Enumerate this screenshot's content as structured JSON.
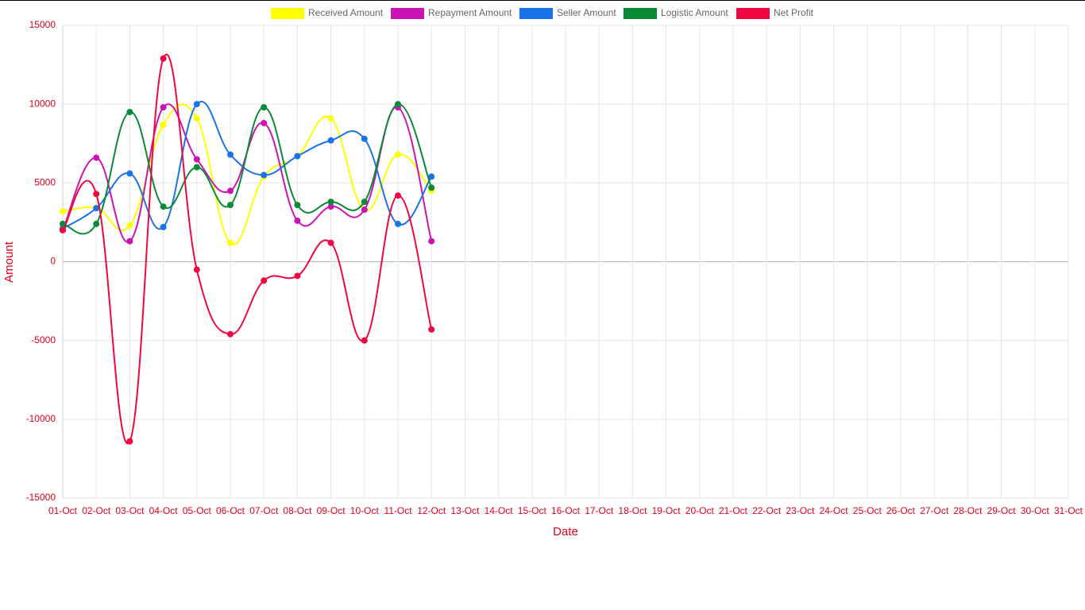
{
  "chart_data": {
    "type": "line",
    "x_label": "Date",
    "y_label": "Amount",
    "categories": [
      "01-Oct",
      "02-Oct",
      "03-Oct",
      "04-Oct",
      "05-Oct",
      "06-Oct",
      "07-Oct",
      "08-Oct",
      "09-Oct",
      "10-Oct",
      "11-Oct",
      "12-Oct",
      "13-Oct",
      "14-Oct",
      "15-Oct",
      "16-Oct",
      "17-Oct",
      "18-Oct",
      "19-Oct",
      "20-Oct",
      "21-Oct",
      "22-Oct",
      "23-Oct",
      "24-Oct",
      "25-Oct",
      "26-Oct",
      "27-Oct",
      "28-Oct",
      "29-Oct",
      "30-Oct",
      "31-Oct"
    ],
    "series": [
      {
        "name": "Received Amount",
        "color": "#ffff00",
        "values": [
          3200,
          3400,
          2300,
          8700,
          9100,
          1200,
          5400,
          6700,
          9100,
          3300,
          6800,
          4500,
          null,
          null,
          null,
          null,
          null,
          null,
          null,
          null,
          null,
          null,
          null,
          null,
          null,
          null,
          null,
          null,
          null,
          null,
          null
        ]
      },
      {
        "name": "Repayment Amount",
        "color": "#cc14b4",
        "values": [
          2000,
          6600,
          1300,
          9800,
          6500,
          4500,
          8800,
          2600,
          3500,
          3300,
          9800,
          1300,
          null,
          null,
          null,
          null,
          null,
          null,
          null,
          null,
          null,
          null,
          null,
          null,
          null,
          null,
          null,
          null,
          null,
          null,
          null
        ]
      },
      {
        "name": "Seller Amount",
        "color": "#1a73e8",
        "values": [
          2100,
          3400,
          5600,
          2200,
          10000,
          6800,
          5500,
          6700,
          7700,
          7800,
          2400,
          5400,
          null,
          null,
          null,
          null,
          null,
          null,
          null,
          null,
          null,
          null,
          null,
          null,
          null,
          null,
          null,
          null,
          null,
          null,
          null
        ]
      },
      {
        "name": "Logistic Amount",
        "color": "#0b8a36",
        "values": [
          2400,
          2400,
          9500,
          3500,
          6000,
          3600,
          9800,
          3600,
          3800,
          3800,
          10000,
          4700,
          null,
          null,
          null,
          null,
          null,
          null,
          null,
          null,
          null,
          null,
          null,
          null,
          null,
          null,
          null,
          null,
          null,
          null,
          null
        ]
      },
      {
        "name": "Net Profit",
        "color": "#f0073f",
        "values": [
          2000,
          4300,
          -11400,
          12900,
          -500,
          -4600,
          -1200,
          -900,
          1200,
          -5000,
          4200,
          -4300,
          null,
          null,
          null,
          null,
          null,
          null,
          null,
          null,
          null,
          null,
          null,
          null,
          null,
          null,
          null,
          null,
          null,
          null,
          null
        ]
      }
    ],
    "ylim": [
      -15000,
      15000
    ],
    "yticks": [
      -15000,
      -10000,
      -5000,
      0,
      5000,
      10000,
      15000
    ],
    "grid": true
  }
}
